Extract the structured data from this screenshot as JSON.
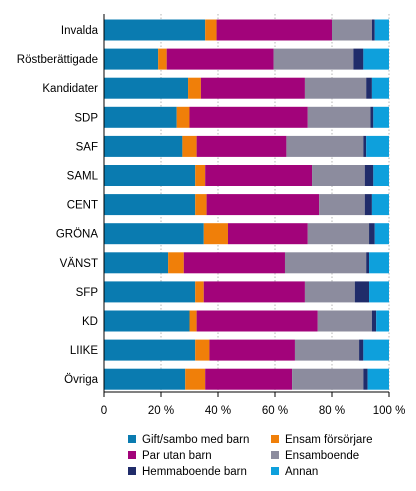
{
  "chart_data": {
    "type": "bar",
    "orientation": "horizontal",
    "stacked": true,
    "normalized_percent": true,
    "categories": [
      "Invalda",
      "Röstberättigade",
      "Kandidater",
      "SDP",
      "SAF",
      "SAML",
      "CENT",
      "GRÖNA",
      "VÄNST",
      "SFP",
      "KD",
      "LIIKE",
      "Övriga"
    ],
    "series": [
      {
        "name": "Gift/sambo med barn",
        "color": "#0a7bb0",
        "values": [
          35.5,
          19,
          29.5,
          25.5,
          27.5,
          32,
          32,
          35,
          22.5,
          32,
          30,
          32,
          28.5
        ]
      },
      {
        "name": "Ensam försörjare",
        "color": "#f07f09",
        "values": [
          4,
          3,
          4.5,
          4.5,
          5,
          3.5,
          4,
          8.5,
          5.5,
          3,
          2.5,
          5,
          7
        ]
      },
      {
        "name": "Par utan barn",
        "color": "#a2037a",
        "values": [
          40.5,
          37.5,
          36.5,
          41.5,
          31.5,
          37.5,
          39.5,
          28,
          35.5,
          35.5,
          42.5,
          30,
          30.5
        ]
      },
      {
        "name": "Ensamboende",
        "color": "#8c8c9e",
        "values": [
          14,
          28,
          21.5,
          22,
          27,
          18.5,
          16,
          21.5,
          28.5,
          17.5,
          19,
          22.5,
          25
        ]
      },
      {
        "name": "Hemmaboende barn",
        "color": "#202c6a",
        "values": [
          1,
          3.5,
          2,
          1,
          1,
          3,
          2.5,
          2,
          1,
          5,
          1.5,
          1.5,
          1.5
        ]
      },
      {
        "name": "Annan",
        "color": "#0ea0dc",
        "values": [
          5,
          9,
          6,
          5.5,
          8,
          5.5,
          6,
          5,
          7,
          7,
          4.5,
          9,
          7.5
        ]
      }
    ],
    "x_ticks": [
      "0",
      "20 %",
      "40 %",
      "60 %",
      "80 %",
      "100 %"
    ],
    "xlim": [
      0,
      100
    ],
    "grid": true,
    "legend_position": "bottom",
    "title": "",
    "xlabel": "",
    "ylabel": ""
  }
}
